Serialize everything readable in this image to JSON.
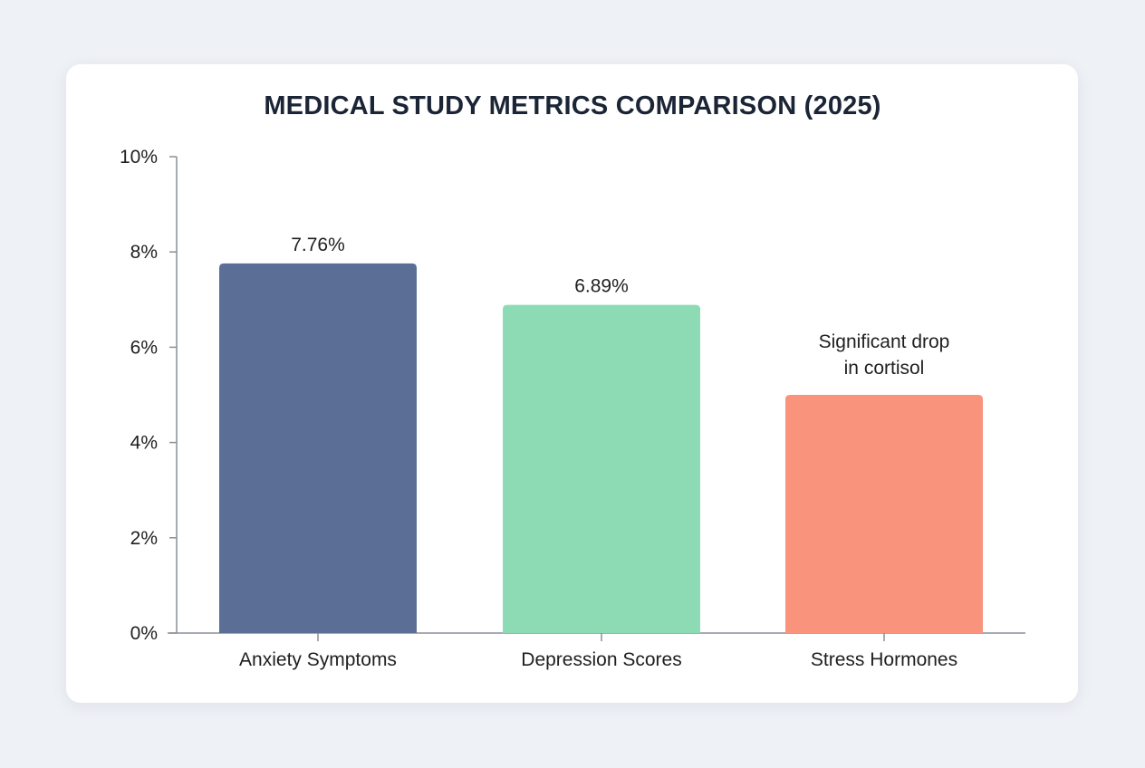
{
  "chart_data": {
    "type": "bar",
    "title": "MEDICAL STUDY METRICS COMPARISON (2025)",
    "xlabel": "",
    "ylabel": "",
    "categories": [
      "Anxiety Symptoms",
      "Depression Scores",
      "Stress Hormones"
    ],
    "values": [
      7.76,
      6.89,
      5.0
    ],
    "data_labels": [
      "7.76%",
      "6.89%",
      "Significant drop in cortisol"
    ],
    "colors": [
      "#5a6e96",
      "#8ddbb5",
      "#f9937c"
    ],
    "ylim": [
      0,
      10
    ],
    "yticks": [
      0,
      2,
      4,
      6,
      8,
      10
    ],
    "ytick_labels": [
      "0%",
      "2%",
      "4%",
      "6%",
      "8%",
      "10%"
    ],
    "grid": false,
    "legend": "none"
  }
}
